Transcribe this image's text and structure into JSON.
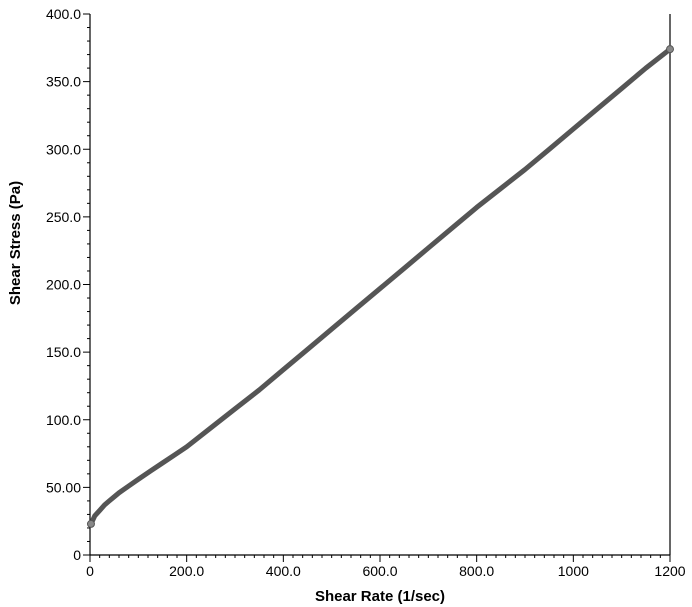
{
  "chart_data": {
    "type": "line",
    "title": "",
    "xlabel": "Shear Rate (1/sec)",
    "ylabel": "Shear Stress (Pa)",
    "xlim": [
      0,
      1200
    ],
    "ylim": [
      0,
      400
    ],
    "grid": false,
    "x_ticks": [
      {
        "value": 0,
        "label": "0"
      },
      {
        "value": 200,
        "label": "200.0"
      },
      {
        "value": 400,
        "label": "400.0"
      },
      {
        "value": 600,
        "label": "600.0"
      },
      {
        "value": 800,
        "label": "800.0"
      },
      {
        "value": 1000,
        "label": "1000"
      },
      {
        "value": 1200,
        "label": "1200"
      }
    ],
    "y_ticks": [
      {
        "value": 0,
        "label": "0"
      },
      {
        "value": 50,
        "label": "50.00"
      },
      {
        "value": 100,
        "label": "100.0"
      },
      {
        "value": 150,
        "label": "150.0"
      },
      {
        "value": 200,
        "label": "200.0"
      },
      {
        "value": 250,
        "label": "250.0"
      },
      {
        "value": 300,
        "label": "300.0"
      },
      {
        "value": 350,
        "label": "350.0"
      },
      {
        "value": 400,
        "label": "400.0"
      }
    ],
    "series": [
      {
        "color": "#555555",
        "x": [
          2,
          10,
          20,
          30,
          40,
          50,
          60,
          80,
          100,
          125,
          150,
          175,
          200,
          250,
          300,
          350,
          400,
          450,
          500,
          550,
          600,
          650,
          700,
          750,
          800,
          850,
          900,
          950,
          1000,
          1050,
          1100,
          1150,
          1200
        ],
        "y": [
          23,
          29,
          33,
          37,
          40,
          43,
          46,
          51,
          56,
          62,
          68,
          74,
          80,
          94,
          108,
          122,
          137,
          152,
          167,
          182,
          197,
          212,
          227,
          242,
          257,
          271,
          285,
          300,
          315,
          330,
          345,
          360,
          374
        ]
      }
    ]
  }
}
